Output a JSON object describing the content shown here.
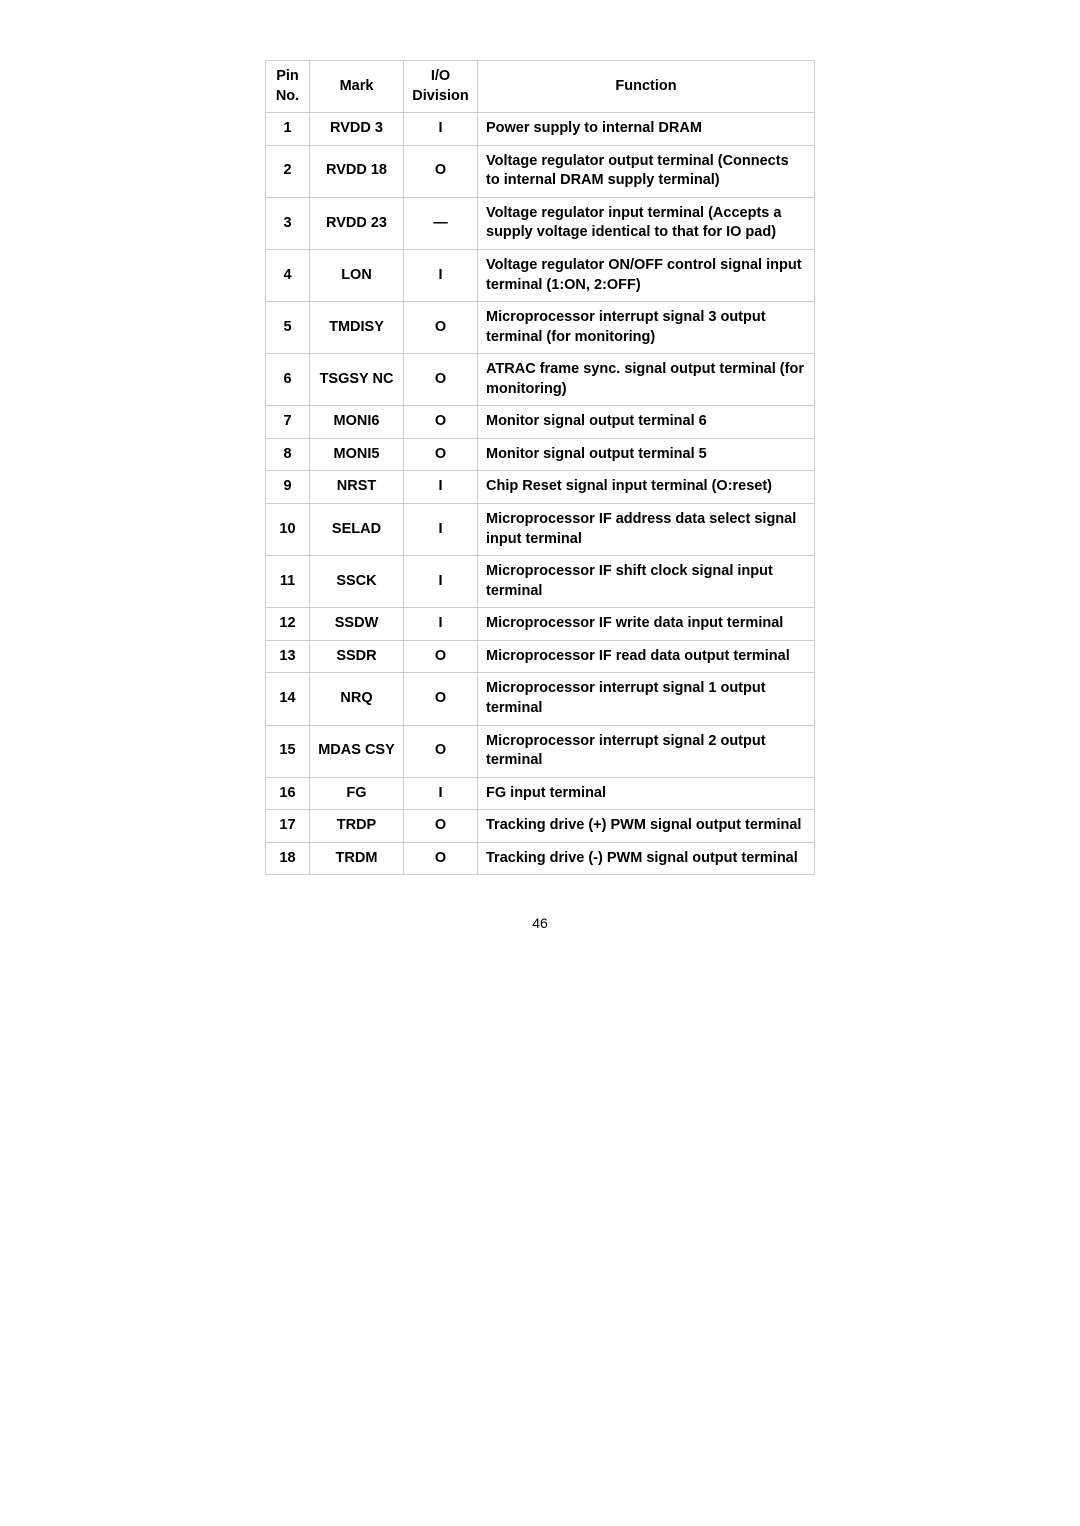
{
  "page_number": "46",
  "table": {
    "header": {
      "pin": "Pin No.",
      "mark": "Mark",
      "io": "I/O Division",
      "func": "Function"
    },
    "rows": [
      {
        "pin": "1",
        "mark": "RVDD 3",
        "io": "I",
        "func": "Power supply to internal DRAM"
      },
      {
        "pin": "2",
        "mark": "RVDD 18",
        "io": "O",
        "func": "Voltage regulator output terminal (Connects to internal DRAM supply terminal)"
      },
      {
        "pin": "3",
        "mark": "RVDD 23",
        "io": "—",
        "func": "Voltage regulator input terminal (Accepts a supply voltage identical to that for IO pad)"
      },
      {
        "pin": "4",
        "mark": "LON",
        "io": "I",
        "func": "Voltage regulator ON/OFF control signal input terminal (1:ON, 2:OFF)"
      },
      {
        "pin": "5",
        "mark": "TMDISY",
        "io": "O",
        "func": "Microprocessor interrupt signal 3 output terminal (for monitoring)"
      },
      {
        "pin": "6",
        "mark": "TSGSY NC",
        "io": "O",
        "func": "ATRAC frame sync. signal output terminal (for monitoring)"
      },
      {
        "pin": "7",
        "mark": "MONI6",
        "io": "O",
        "func": "Monitor signal output terminal 6"
      },
      {
        "pin": "8",
        "mark": "MONI5",
        "io": "O",
        "func": "Monitor signal output terminal 5"
      },
      {
        "pin": "9",
        "mark": "NRST",
        "io": "I",
        "func": "Chip Reset signal input terminal (O:reset)"
      },
      {
        "pin": "10",
        "mark": "SELAD",
        "io": "I",
        "func": "Microprocessor IF address data select signal input terminal"
      },
      {
        "pin": "11",
        "mark": "SSCK",
        "io": "I",
        "func": "Microprocessor IF shift clock signal input terminal"
      },
      {
        "pin": "12",
        "mark": "SSDW",
        "io": "I",
        "func": "Microprocessor IF write data input terminal"
      },
      {
        "pin": "13",
        "mark": "SSDR",
        "io": "O",
        "func": "Microprocessor IF read data output terminal"
      },
      {
        "pin": "14",
        "mark": "NRQ",
        "io": "O",
        "func": "Microprocessor interrupt signal 1 output terminal"
      },
      {
        "pin": "15",
        "mark": "MDAS CSY",
        "io": "O",
        "func": "Microprocessor interrupt signal 2 output terminal"
      },
      {
        "pin": "16",
        "mark": "FG",
        "io": "I",
        "func": "FG input terminal"
      },
      {
        "pin": "17",
        "mark": "TRDP",
        "io": "O",
        "func": "Tracking drive (+) PWM signal output terminal"
      },
      {
        "pin": "18",
        "mark": "TRDM",
        "io": "O",
        "func": "Tracking drive (-) PWM signal output terminal"
      }
    ]
  }
}
